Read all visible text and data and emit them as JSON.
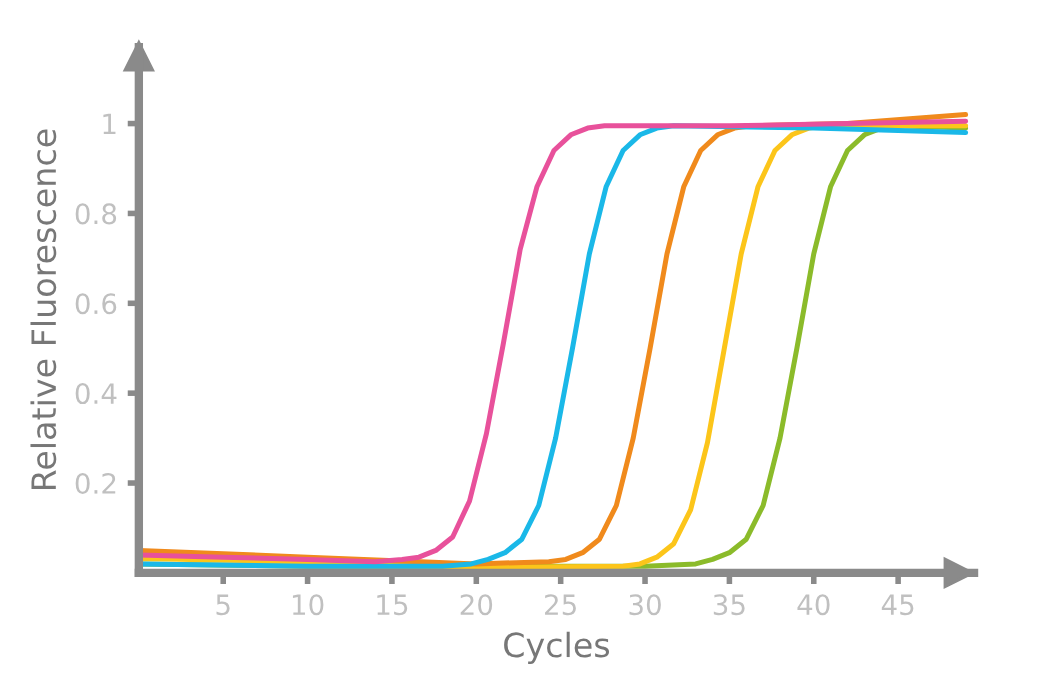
{
  "chart_data": {
    "type": "line",
    "xlabel": "Cycles",
    "ylabel": "Relative Fluorescence",
    "xlim": [
      0,
      49.5
    ],
    "ylim": [
      0,
      1.17
    ],
    "xticks": [
      5,
      10,
      15,
      20,
      25,
      30,
      35,
      40,
      45
    ],
    "yticks": [
      0.2,
      0.4,
      0.6,
      0.8,
      1
    ],
    "grid": false,
    "marker": "none",
    "line_style": "solid",
    "series": [
      {
        "color": "#e8519b",
        "x": [
          0,
          5,
          10,
          14,
          15.6,
          16.6,
          17.6,
          18.6,
          19.6,
          20.6,
          21.6,
          22.6,
          23.6,
          24.6,
          25.6,
          26.6,
          27.6,
          35,
          42,
          49
        ],
        "values": [
          0.04,
          0.035,
          0.03,
          0.025,
          0.03,
          0.035,
          0.05,
          0.08,
          0.16,
          0.31,
          0.51,
          0.72,
          0.86,
          0.94,
          0.975,
          0.99,
          0.995,
          0.995,
          1.0,
          1.005
        ]
      },
      {
        "color": "#1ab8e8",
        "x": [
          0,
          10,
          18,
          19.7,
          20.7,
          21.7,
          22.7,
          23.7,
          24.7,
          25.7,
          26.7,
          27.7,
          28.7,
          29.7,
          30.7,
          31.7,
          40,
          49
        ],
        "values": [
          0.02,
          0.015,
          0.015,
          0.02,
          0.03,
          0.045,
          0.075,
          0.15,
          0.3,
          0.5,
          0.71,
          0.86,
          0.94,
          0.975,
          0.99,
          0.995,
          0.99,
          0.98
        ]
      },
      {
        "color": "#f08a1c",
        "x": [
          0,
          10,
          20,
          24.3,
          25.3,
          26.3,
          27.3,
          28.3,
          29.3,
          30.3,
          31.3,
          32.3,
          33.3,
          34.3,
          35.3,
          36.3,
          42,
          49
        ],
        "values": [
          0.05,
          0.035,
          0.02,
          0.025,
          0.03,
          0.045,
          0.075,
          0.15,
          0.3,
          0.5,
          0.71,
          0.86,
          0.94,
          0.975,
          0.99,
          0.995,
          1.0,
          1.02
        ]
      },
      {
        "color": "#fcc51a",
        "x": [
          0,
          10,
          20,
          28.7,
          29.7,
          30.7,
          31.7,
          32.7,
          33.7,
          34.7,
          35.7,
          36.7,
          37.7,
          38.7,
          39.7,
          40.7,
          49
        ],
        "values": [
          0.032,
          0.025,
          0.012,
          0.015,
          0.02,
          0.035,
          0.065,
          0.14,
          0.29,
          0.5,
          0.71,
          0.86,
          0.94,
          0.975,
          0.99,
          0.995,
          0.995
        ]
      },
      {
        "color": "#8bbb2a",
        "x": [
          0,
          10,
          20,
          30,
          33,
          34,
          35,
          36,
          37,
          38,
          39,
          40,
          41,
          42,
          43,
          44,
          45,
          49
        ],
        "values": [
          0.02,
          0.015,
          0.015,
          0.015,
          0.02,
          0.03,
          0.045,
          0.075,
          0.15,
          0.3,
          0.5,
          0.71,
          0.86,
          0.94,
          0.975,
          0.99,
          0.995,
          0.99
        ]
      }
    ]
  }
}
